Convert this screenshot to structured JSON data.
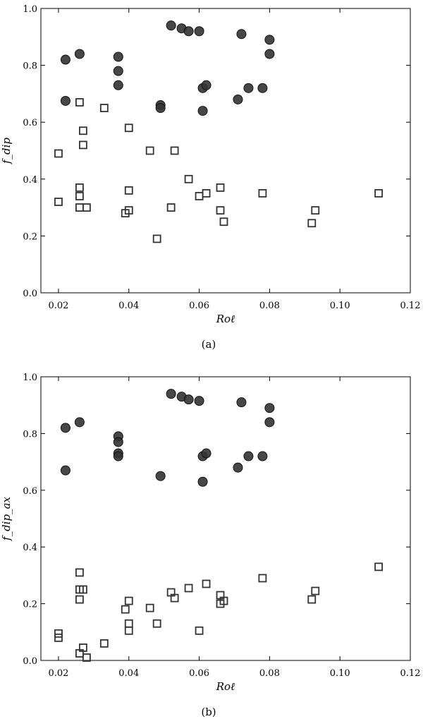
{
  "chart_data": [
    {
      "type": "scatter",
      "caption": "(a)",
      "xlabel": "Roℓ",
      "ylabel": "f_dip",
      "xlim": [
        0.015,
        0.12
      ],
      "ylim": [
        0.0,
        1.0
      ],
      "xticks": [
        "0.02",
        "0.04",
        "0.06",
        "0.08",
        "0.10",
        "0.12"
      ],
      "yticks": [
        "0.0",
        "0.2",
        "0.4",
        "0.6",
        "0.8",
        "1.0"
      ],
      "grid": false,
      "series": [
        {
          "marker": "filled-circle",
          "color": "#333333",
          "x": [
            0.022,
            0.022,
            0.026,
            0.037,
            0.037,
            0.037,
            0.049,
            0.049,
            0.052,
            0.055,
            0.057,
            0.06,
            0.061,
            0.061,
            0.062,
            0.071,
            0.072,
            0.074,
            0.078,
            0.08,
            0.08
          ],
          "y": [
            0.82,
            0.675,
            0.84,
            0.83,
            0.78,
            0.73,
            0.66,
            0.65,
            0.94,
            0.93,
            0.92,
            0.92,
            0.72,
            0.64,
            0.73,
            0.68,
            0.91,
            0.72,
            0.72,
            0.89,
            0.84
          ]
        },
        {
          "marker": "open-square",
          "color": "#333333",
          "x": [
            0.02,
            0.02,
            0.026,
            0.026,
            0.026,
            0.026,
            0.027,
            0.027,
            0.028,
            0.033,
            0.039,
            0.04,
            0.04,
            0.04,
            0.046,
            0.048,
            0.052,
            0.053,
            0.057,
            0.06,
            0.062,
            0.066,
            0.066,
            0.067,
            0.078,
            0.092,
            0.093,
            0.111
          ],
          "y": [
            0.49,
            0.32,
            0.67,
            0.37,
            0.34,
            0.3,
            0.57,
            0.52,
            0.3,
            0.65,
            0.28,
            0.58,
            0.36,
            0.29,
            0.5,
            0.19,
            0.3,
            0.5,
            0.4,
            0.34,
            0.35,
            0.37,
            0.29,
            0.25,
            0.35,
            0.245,
            0.29,
            0.35
          ]
        }
      ]
    },
    {
      "type": "scatter",
      "caption": "(b)",
      "xlabel": "Roℓ",
      "ylabel": "f_dip_ax",
      "xlim": [
        0.015,
        0.12
      ],
      "ylim": [
        0.0,
        1.0
      ],
      "xticks": [
        "0.02",
        "0.04",
        "0.06",
        "0.08",
        "0.10",
        "0.12"
      ],
      "yticks": [
        "0.0",
        "0.2",
        "0.4",
        "0.6",
        "0.8",
        "1.0"
      ],
      "grid": false,
      "series": [
        {
          "marker": "filled-circle",
          "color": "#333333",
          "x": [
            0.022,
            0.022,
            0.026,
            0.037,
            0.037,
            0.037,
            0.037,
            0.049,
            0.052,
            0.055,
            0.057,
            0.06,
            0.061,
            0.061,
            0.062,
            0.071,
            0.072,
            0.074,
            0.078,
            0.08,
            0.08
          ],
          "y": [
            0.82,
            0.67,
            0.84,
            0.79,
            0.77,
            0.73,
            0.72,
            0.65,
            0.94,
            0.93,
            0.92,
            0.915,
            0.72,
            0.63,
            0.73,
            0.68,
            0.91,
            0.72,
            0.72,
            0.89,
            0.84
          ]
        },
        {
          "marker": "open-square",
          "color": "#333333",
          "x": [
            0.02,
            0.02,
            0.026,
            0.026,
            0.026,
            0.026,
            0.027,
            0.027,
            0.028,
            0.033,
            0.039,
            0.04,
            0.04,
            0.04,
            0.046,
            0.048,
            0.052,
            0.053,
            0.057,
            0.06,
            0.062,
            0.066,
            0.066,
            0.067,
            0.078,
            0.092,
            0.093,
            0.111
          ],
          "y": [
            0.095,
            0.08,
            0.31,
            0.25,
            0.215,
            0.025,
            0.25,
            0.045,
            0.01,
            0.06,
            0.18,
            0.21,
            0.13,
            0.105,
            0.185,
            0.13,
            0.24,
            0.22,
            0.255,
            0.105,
            0.27,
            0.23,
            0.2,
            0.21,
            0.29,
            0.215,
            0.245,
            0.33
          ]
        }
      ]
    }
  ]
}
